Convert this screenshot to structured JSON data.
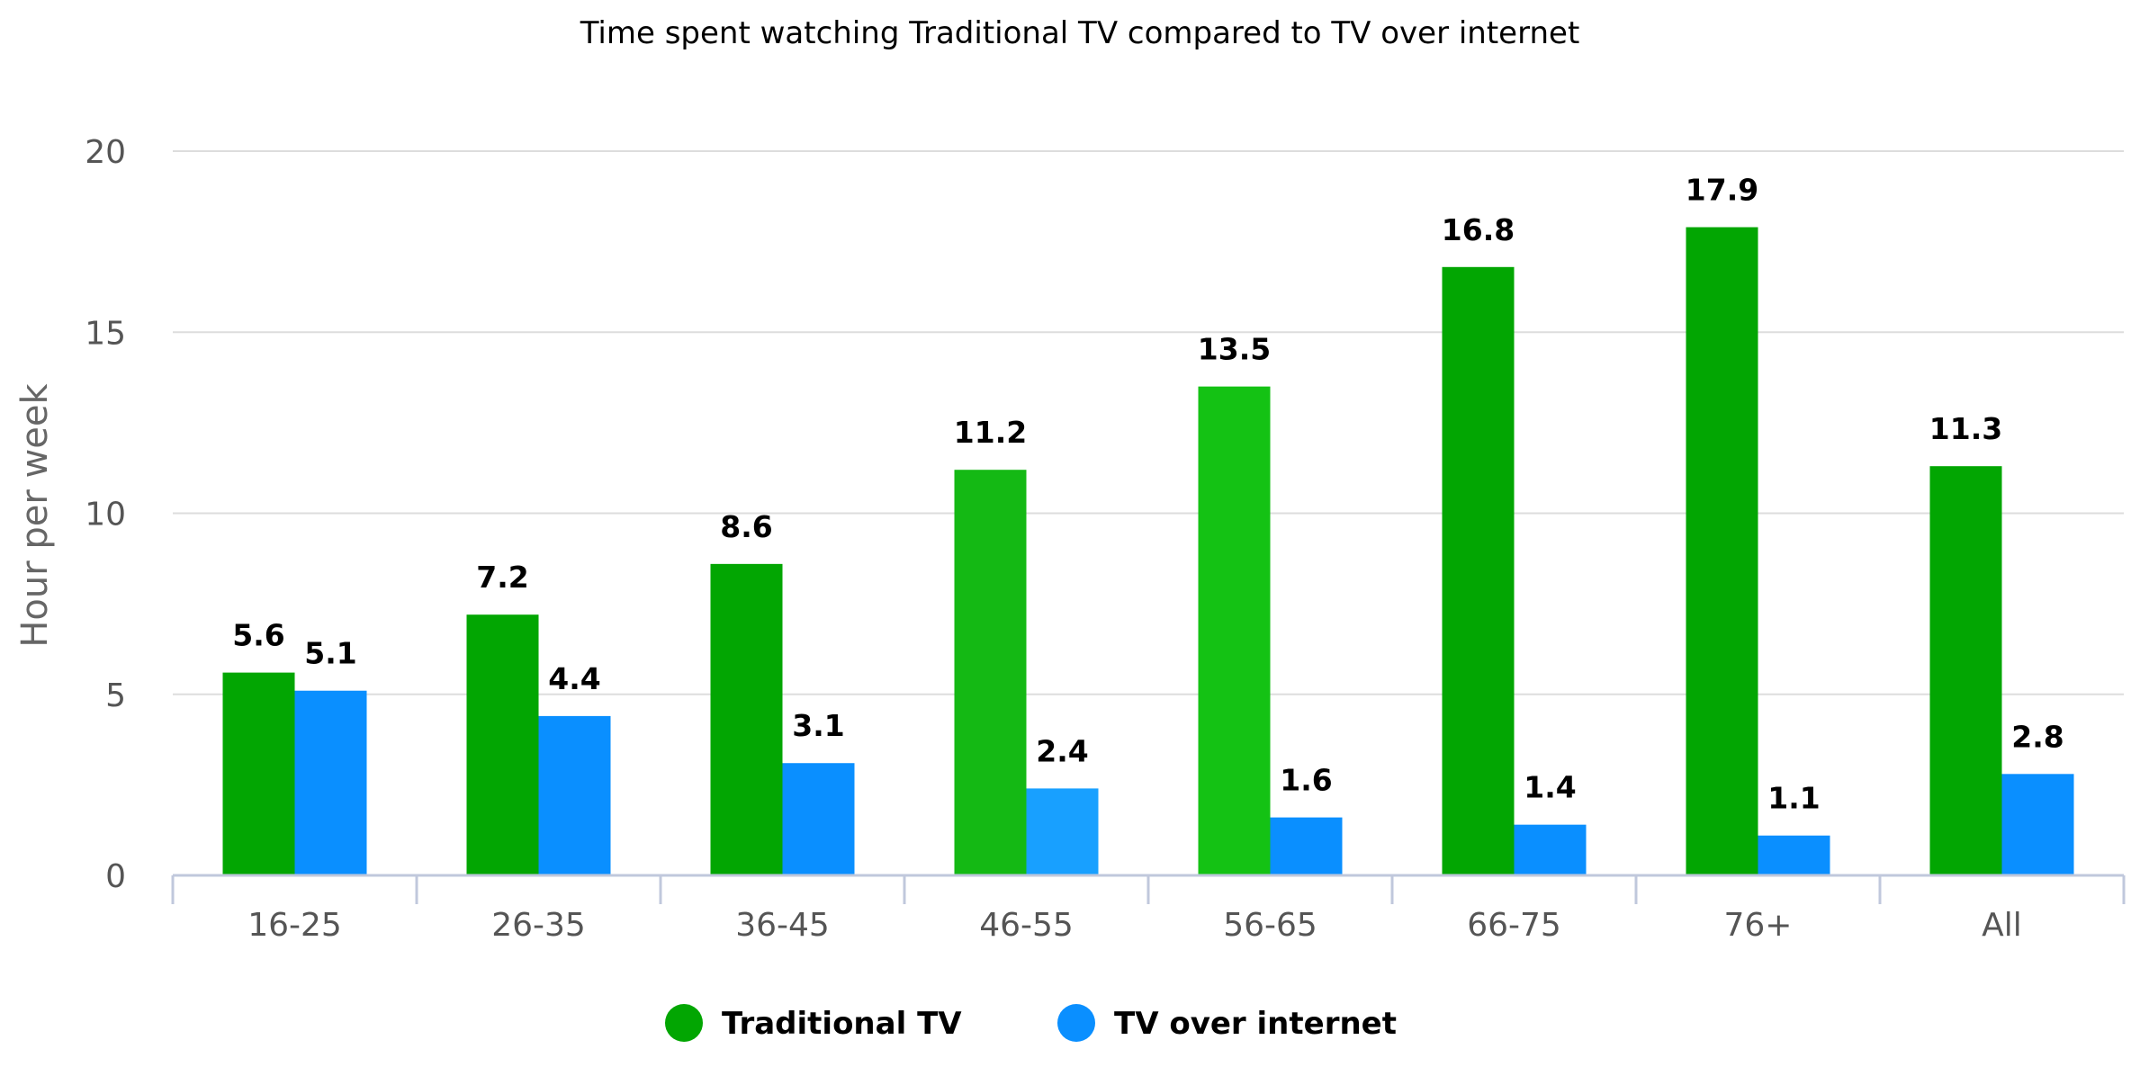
{
  "chart_data": {
    "type": "bar",
    "title": "Time spent watching Traditional TV compared to TV over internet",
    "xlabel": "",
    "ylabel": "Hour per week",
    "ylim": [
      0,
      20
    ],
    "yticks": [
      0,
      5,
      10,
      15,
      20
    ],
    "grid": true,
    "legend_position": "bottom",
    "categories": [
      "16-25",
      "26-35",
      "36-45",
      "46-55",
      "56-65",
      "66-75",
      "76+",
      "All"
    ],
    "series": [
      {
        "name": "Traditional TV",
        "color": "#02a602",
        "values": [
          5.6,
          7.2,
          8.6,
          11.2,
          13.5,
          16.8,
          17.9,
          11.3
        ],
        "bar_colors": [
          "#02a602",
          "#02a602",
          "#02a602",
          "#14b914",
          "#14c214",
          "#02a602",
          "#02a602",
          "#02a602"
        ]
      },
      {
        "name": "TV over internet",
        "color": "#0a8fff",
        "values": [
          5.1,
          4.4,
          3.1,
          2.4,
          1.6,
          1.4,
          1.1,
          2.8
        ],
        "bar_colors": [
          "#0a8fff",
          "#0a8fff",
          "#0a8fff",
          "#18a0ff",
          "#0a8fff",
          "#0a8fff",
          "#0a8fff",
          "#0a8fff"
        ]
      }
    ]
  }
}
